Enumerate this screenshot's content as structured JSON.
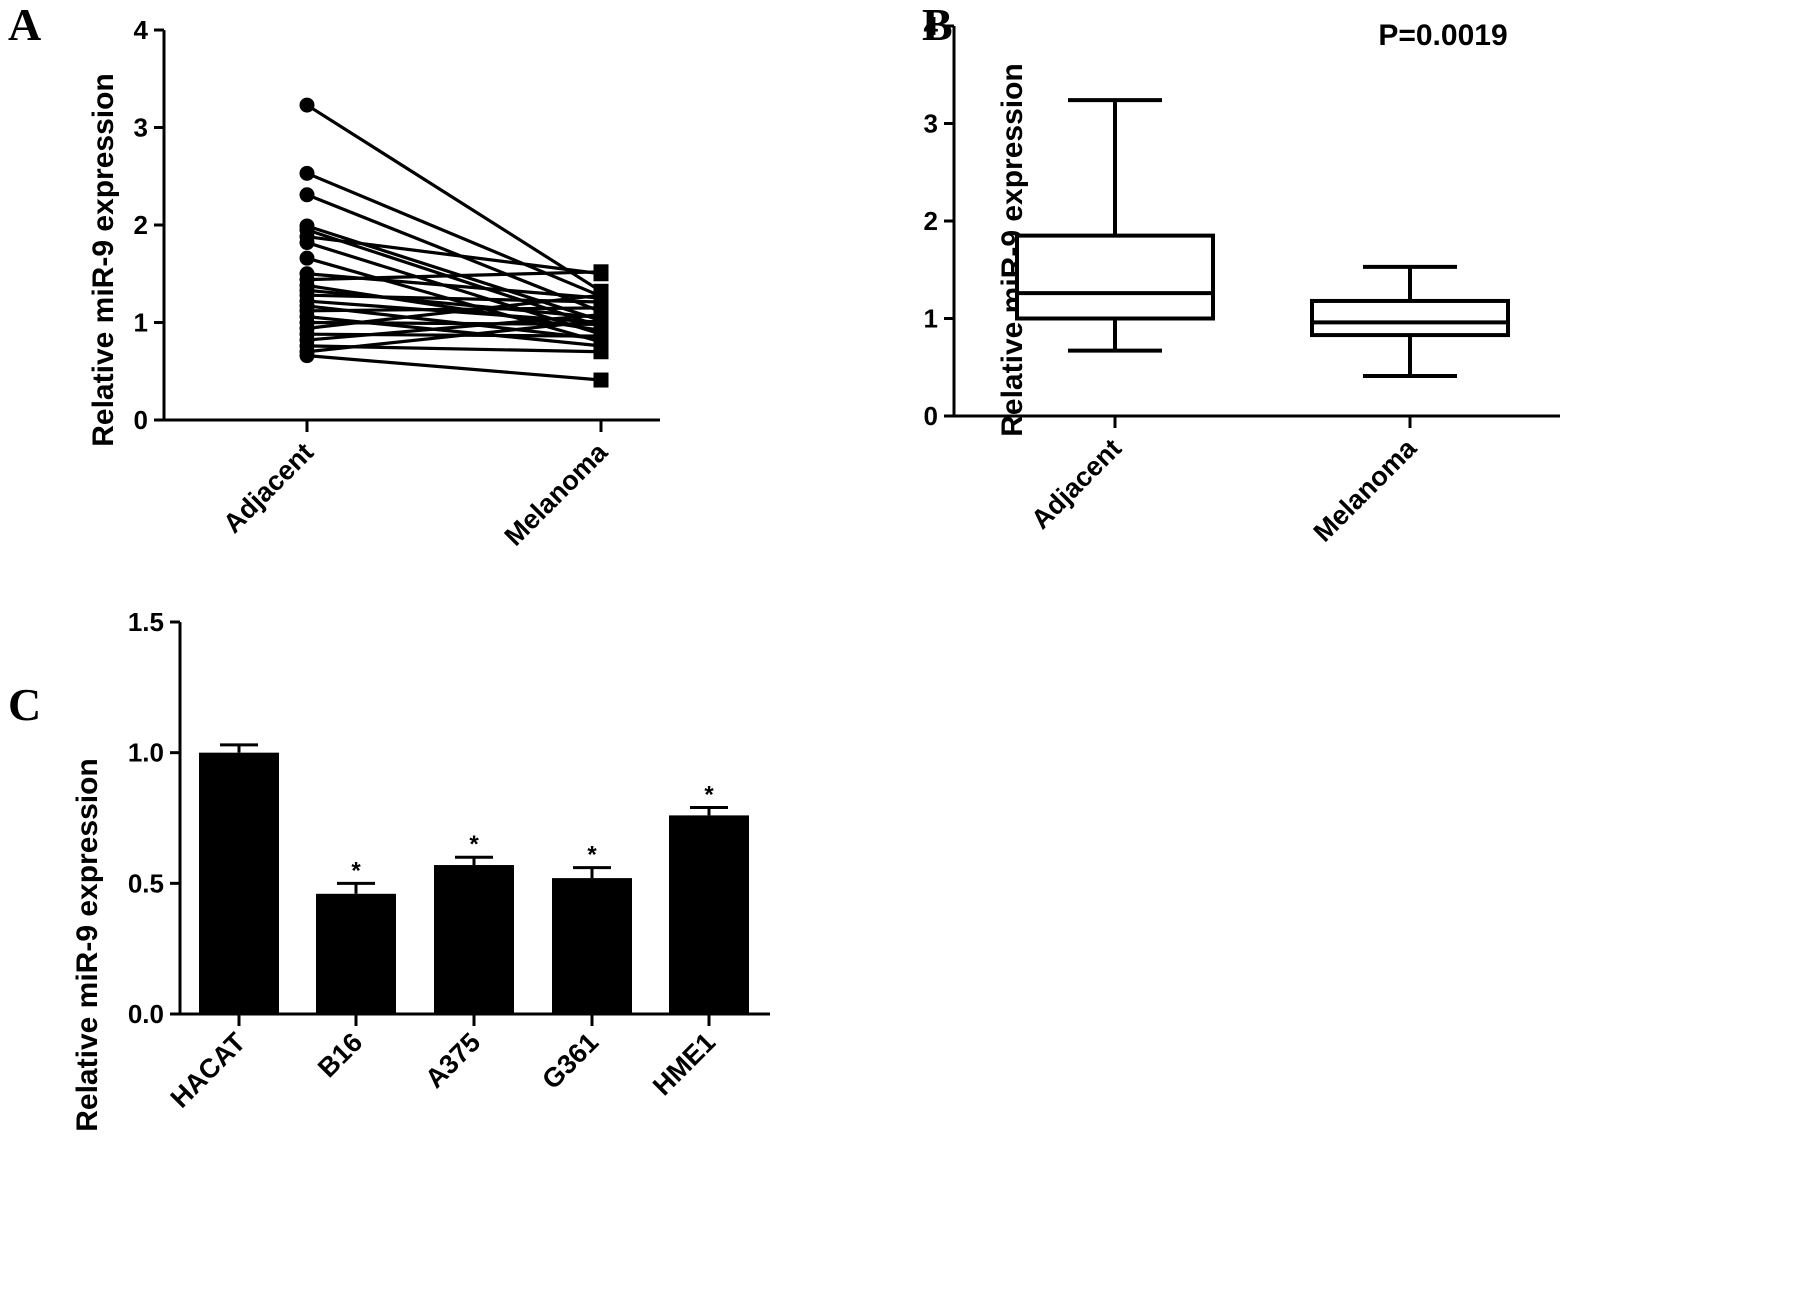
{
  "panels": {
    "a": {
      "letter": "A",
      "ylabel": "Relative miR-9 expression"
    },
    "b": {
      "letter": "B",
      "ylabel": "Relative miR-9 expression",
      "pvalue": "P=0.0019"
    },
    "c": {
      "letter": "C",
      "ylabel": "Relative miR-9 expression"
    }
  },
  "chart_data": [
    {
      "type": "line",
      "panel": "A",
      "title": "",
      "xlabel": "",
      "ylabel": "Relative miR-9 expression",
      "categories": [
        "Adjacent",
        "Melanoma"
      ],
      "ylim": [
        0,
        4
      ],
      "yticks": [
        "0",
        "1",
        "2",
        "3",
        "4"
      ],
      "markers": {
        "Adjacent": "circle",
        "Melanoma": "square"
      },
      "pairs": [
        [
          3.23,
          1.32
        ],
        [
          2.53,
          1.27
        ],
        [
          2.31,
          1.11
        ],
        [
          1.99,
          1.02
        ],
        [
          1.95,
          0.96
        ],
        [
          1.88,
          1.5
        ],
        [
          1.82,
          0.88
        ],
        [
          1.66,
          0.8
        ],
        [
          1.5,
          1.25
        ],
        [
          1.44,
          1.52
        ],
        [
          1.38,
          0.92
        ],
        [
          1.33,
          1.05
        ],
        [
          1.28,
          1.21
        ],
        [
          1.22,
          1.0
        ],
        [
          1.17,
          0.83
        ],
        [
          1.12,
          1.15
        ],
        [
          1.06,
          0.76
        ],
        [
          1.0,
          0.98
        ],
        [
          0.94,
          1.28
        ],
        [
          0.88,
          0.86
        ],
        [
          0.82,
          1.08
        ],
        [
          0.76,
          0.7
        ],
        [
          0.7,
          1.02
        ],
        [
          0.66,
          0.41
        ]
      ]
    },
    {
      "type": "box",
      "panel": "B",
      "title": "",
      "xlabel": "",
      "ylabel": "Relative miR-9 expression",
      "categories": [
        "Adjacent",
        "Melanoma"
      ],
      "ylim": [
        0,
        4
      ],
      "yticks": [
        "0",
        "1",
        "2",
        "3",
        "4"
      ],
      "annotation": "P=0.0019",
      "boxes": [
        {
          "name": "Adjacent",
          "min": 0.67,
          "q1": 1.0,
          "median": 1.26,
          "q3": 1.85,
          "max": 3.24
        },
        {
          "name": "Melanoma",
          "min": 0.41,
          "q1": 0.83,
          "median": 0.96,
          "q3": 1.18,
          "max": 1.53
        }
      ]
    },
    {
      "type": "bar",
      "panel": "C",
      "title": "",
      "xlabel": "",
      "ylabel": "Relative miR-9 expression",
      "categories": [
        "HACAT",
        "B16",
        "A375",
        "G361",
        "HME1"
      ],
      "values": [
        1.0,
        0.46,
        0.57,
        0.52,
        0.76
      ],
      "errors": [
        0.03,
        0.04,
        0.03,
        0.04,
        0.03
      ],
      "significance": [
        "",
        "*",
        "*",
        "*",
        "*"
      ],
      "ylim": [
        0,
        1.5
      ],
      "yticks": [
        "0.0",
        "0.5",
        "1.0",
        "1.5"
      ]
    }
  ]
}
